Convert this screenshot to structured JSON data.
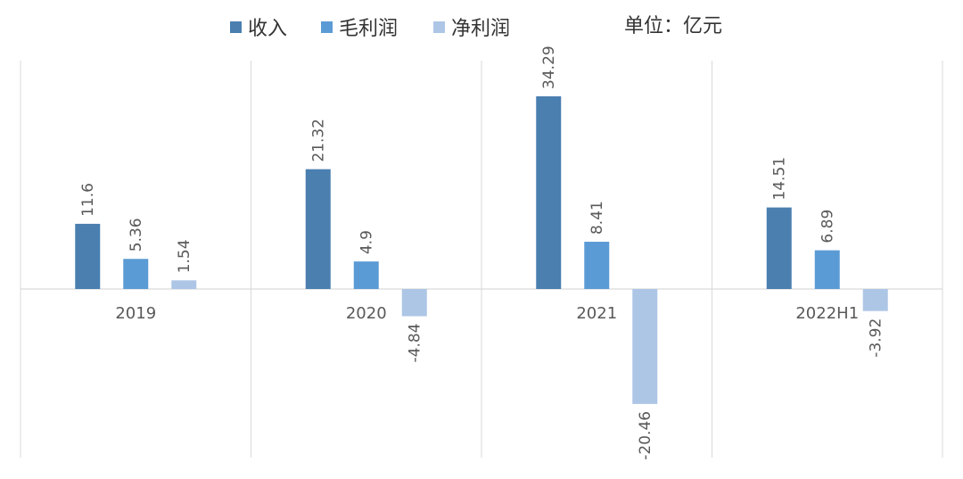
{
  "unit_label": "单位：亿元",
  "legend": [
    {
      "label": "收入",
      "color": "#4a7fb0"
    },
    {
      "label": "毛利润",
      "color": "#5b9bd5"
    },
    {
      "label": "净利润",
      "color": "#adc6e6"
    }
  ],
  "chart_data": {
    "type": "bar",
    "categories": [
      "2019",
      "2020",
      "2021",
      "2022H1"
    ],
    "series": [
      {
        "name": "收入",
        "color": "#4a7fb0",
        "values": [
          11.6,
          21.32,
          34.29,
          14.51
        ],
        "labels": [
          "11.6",
          "21.32",
          "34.29",
          "14.51"
        ]
      },
      {
        "name": "毛利润",
        "color": "#5b9bd5",
        "values": [
          5.36,
          4.9,
          8.41,
          6.89
        ],
        "labels": [
          "5.36",
          "4.9",
          "8.41",
          "6.89"
        ]
      },
      {
        "name": "净利润",
        "color": "#adc6e6",
        "values": [
          1.54,
          -4.84,
          -20.46,
          -3.92
        ],
        "labels": [
          "1.54",
          "-4.84",
          "-20.46",
          "-3.92"
        ]
      }
    ],
    "ylim": [
      -30.0,
      40.0
    ],
    "grid": false,
    "legend_position": "top"
  }
}
